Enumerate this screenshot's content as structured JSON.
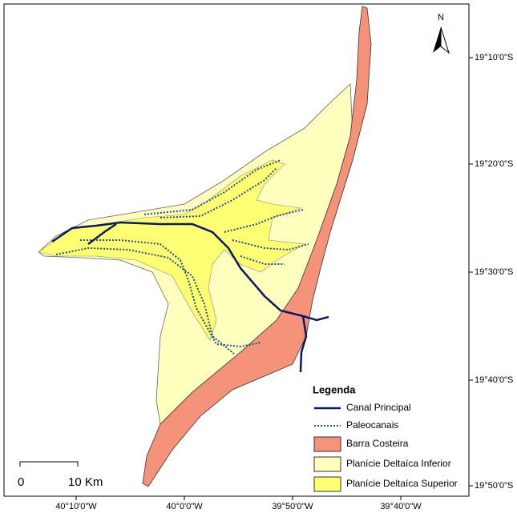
{
  "north": "N",
  "latitude_labels": [
    "19°10'0\"S",
    "19°20'0\"S",
    "19°30'0\"S",
    "19°40'0\"S",
    "19°50'0\"S"
  ],
  "longitude_labels": [
    "40°10'0\"W",
    "40°0'0\"W",
    "39°50'0\"W",
    "39°40'0\"W"
  ],
  "scale_bar": {
    "start": "0",
    "end": "10 Km"
  },
  "legend": {
    "title": "Legenda",
    "items": [
      "Canal Principal",
      "Paleocanais",
      "Barra Costeira",
      "Planície Deltaíca Inferior",
      "Planície Deltaíca Superior"
    ]
  }
}
